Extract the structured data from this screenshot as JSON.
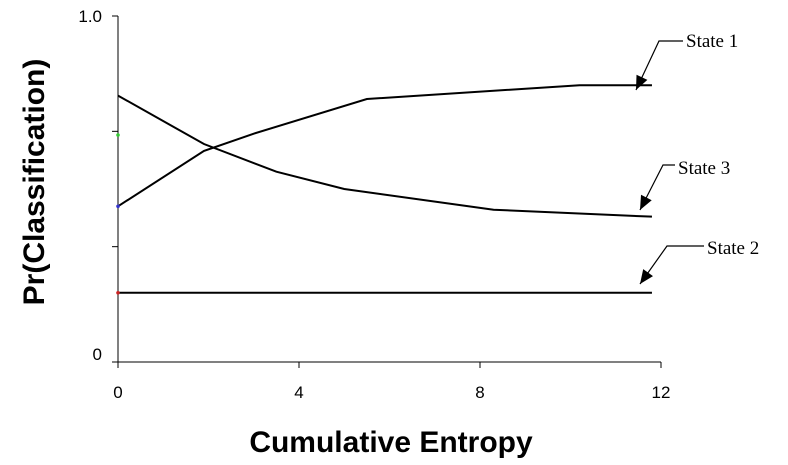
{
  "chart_data": {
    "type": "line",
    "xlabel": "Cumulative Entropy",
    "ylabel": "Pr(Classification)",
    "xlim": [
      0,
      12
    ],
    "ylim": [
      0,
      1.0
    ],
    "x_ticks": [
      0,
      4,
      8,
      12
    ],
    "y_ticks": [
      0,
      1.0
    ],
    "y_tick_labels": [
      "0",
      "1.0"
    ],
    "grid": false,
    "legend": "none",
    "series": [
      {
        "name": "State 1",
        "x": [
          0,
          1.9,
          3.0,
          5.5,
          10.2,
          11.8
        ],
        "y": [
          0.45,
          0.61,
          0.66,
          0.76,
          0.8,
          0.8
        ]
      },
      {
        "name": "State 3",
        "x": [
          0,
          1.9,
          3.5,
          5.0,
          8.3,
          11.8
        ],
        "y": [
          0.77,
          0.63,
          0.55,
          0.5,
          0.44,
          0.42
        ]
      },
      {
        "name": "State 2",
        "x": [
          0,
          11.8
        ],
        "y": [
          0.2,
          0.2
        ]
      }
    ]
  }
}
